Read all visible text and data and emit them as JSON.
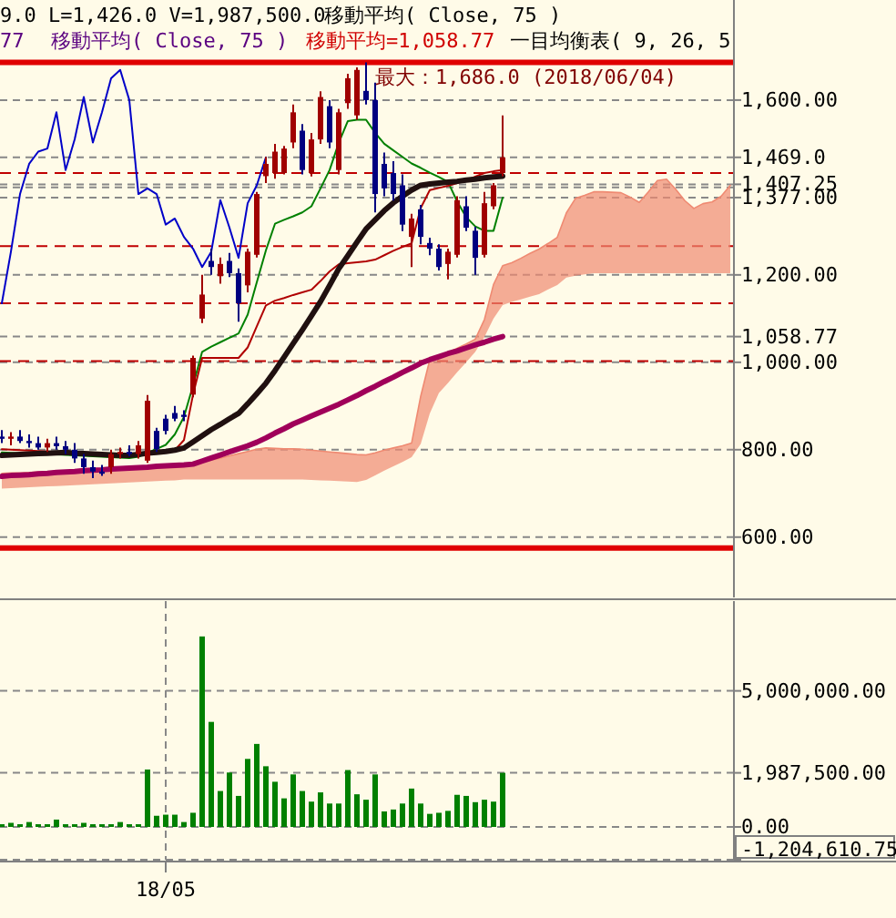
{
  "chart_data": [
    {
      "type": "candlestick",
      "categories": [
        null,
        null,
        null,
        null,
        null,
        null,
        null,
        null,
        null,
        null,
        null,
        null,
        null,
        null,
        null,
        null,
        null,
        null,
        null,
        null,
        null,
        null,
        null,
        null,
        null,
        null,
        null,
        null,
        null,
        null,
        null,
        null,
        null,
        null,
        null,
        null,
        null,
        null,
        null,
        null,
        null,
        null,
        null,
        null,
        null,
        null,
        null,
        null,
        null,
        null,
        null,
        null,
        null,
        null,
        null,
        null,
        null,
        null,
        null,
        null,
        null,
        null,
        null,
        null,
        null,
        null,
        null,
        null,
        null,
        null,
        null,
        null,
        null,
        null,
        null,
        null,
        null,
        null,
        null,
        null,
        null
      ],
      "ohlc": [
        [
          830,
          845,
          815,
          825
        ],
        [
          825,
          840,
          810,
          830
        ],
        [
          830,
          845,
          815,
          820
        ],
        [
          820,
          835,
          805,
          815
        ],
        [
          815,
          830,
          800,
          805
        ],
        [
          805,
          825,
          795,
          815
        ],
        [
          815,
          830,
          800,
          808
        ],
        [
          808,
          820,
          790,
          800
        ],
        [
          800,
          815,
          770,
          780
        ],
        [
          780,
          790,
          745,
          760
        ],
        [
          760,
          775,
          735,
          750
        ],
        [
          750,
          765,
          740,
          745
        ],
        [
          760,
          800,
          745,
          790
        ],
        [
          790,
          805,
          780,
          795
        ],
        [
          795,
          810,
          785,
          790
        ],
        [
          790,
          820,
          780,
          810
        ],
        [
          775,
          925,
          770,
          912
        ],
        [
          843,
          850,
          795,
          801
        ],
        [
          871,
          880,
          835,
          843
        ],
        [
          884,
          900,
          865,
          871
        ],
        [
          880,
          890,
          865,
          875
        ],
        [
          926,
          1015,
          920,
          1010
        ],
        [
          1100,
          1200,
          1090,
          1155
        ],
        [
          1232,
          1260,
          1200,
          1218
        ],
        [
          1197,
          1240,
          1180,
          1225
        ],
        [
          1232,
          1250,
          1195,
          1204
        ],
        [
          1204,
          1215,
          1093,
          1135
        ],
        [
          1176,
          1260,
          1160,
          1253
        ],
        [
          1246,
          1390,
          1240,
          1385
        ],
        [
          1426,
          1470,
          1410,
          1454
        ],
        [
          1433,
          1500,
          1420,
          1482
        ],
        [
          1433,
          1495,
          1430,
          1489
        ],
        [
          1503,
          1590,
          1490,
          1572
        ],
        [
          1530,
          1545,
          1430,
          1440
        ],
        [
          1433,
          1525,
          1425,
          1510
        ],
        [
          1510,
          1620,
          1500,
          1607
        ],
        [
          1586,
          1600,
          1490,
          1503
        ],
        [
          1440,
          1580,
          1430,
          1572
        ],
        [
          1593,
          1660,
          1580,
          1650
        ],
        [
          1565,
          1675,
          1555,
          1669
        ],
        [
          1621,
          1686,
          1590,
          1600
        ],
        [
          1600,
          1640,
          1343,
          1385
        ],
        [
          1454,
          1480,
          1380,
          1398
        ],
        [
          1433,
          1460,
          1370,
          1385
        ],
        [
          1405,
          1430,
          1300,
          1315
        ],
        [
          1287,
          1340,
          1218,
          1329
        ],
        [
          1350,
          1360,
          1270,
          1287
        ],
        [
          1273,
          1285,
          1245,
          1260
        ],
        [
          1260,
          1270,
          1210,
          1218
        ],
        [
          1225,
          1260,
          1190,
          1253
        ],
        [
          1246,
          1380,
          1240,
          1371
        ],
        [
          1357,
          1380,
          1300,
          1308
        ],
        [
          1301,
          1310,
          1200,
          1239
        ],
        [
          1246,
          1390,
          1240,
          1364
        ],
        [
          1357,
          1410,
          1350,
          1405
        ],
        [
          1433,
          1565,
          1426,
          1469
        ],
        null,
        null,
        null,
        null,
        null,
        null,
        null,
        null,
        null,
        null,
        null,
        null,
        null,
        null,
        null,
        null,
        null,
        null,
        null,
        null,
        null,
        null,
        null,
        null,
        null
      ],
      "series": [
        {
          "type": "line",
          "color": "#ef8a72",
          "values": [
            746,
            747,
            747,
            748,
            749,
            749,
            750,
            751,
            752,
            752,
            753,
            754,
            754,
            755,
            756,
            756,
            757,
            758,
            759,
            759,
            761,
            766,
            771,
            776,
            781,
            786,
            791,
            796,
            801,
            804,
            803,
            802,
            802,
            801,
            799,
            797,
            795,
            793,
            791,
            789,
            788,
            793,
            799,
            804,
            809,
            815,
            922,
            1006,
            1012,
            1022,
            1032,
            1042,
            1053,
            1098,
            1178,
            1221,
            1228,
            1238,
            1249,
            1259,
            1272,
            1286,
            1342,
            1375,
            1382,
            1390,
            1390,
            1389,
            1388,
            1378,
            1366,
            1390,
            1416,
            1419,
            1396,
            1370,
            1352,
            1363,
            1367,
            1380,
            1405
          ],
          "upper": [
            746,
            747,
            747,
            748,
            749,
            749,
            750,
            751,
            752,
            752,
            753,
            754,
            754,
            755,
            756,
            756,
            757,
            758,
            759,
            759,
            761,
            766,
            771,
            776,
            781,
            786,
            791,
            796,
            801,
            804,
            803,
            802,
            802,
            801,
            799,
            797,
            795,
            793,
            791,
            789,
            788,
            793,
            799,
            804,
            809,
            815,
            922,
            1006,
            1012,
            1022,
            1032,
            1042,
            1053,
            1098,
            1178,
            1221,
            1228,
            1238,
            1249,
            1259,
            1272,
            1286,
            1342,
            1375,
            1382,
            1390,
            1390,
            1389,
            1388,
            1378,
            1366,
            1390,
            1416,
            1419,
            1396,
            1370,
            1352,
            1363,
            1367,
            1380,
            1405
          ],
          "lower": [
            711,
            712,
            713,
            714,
            715,
            716,
            717,
            718,
            719,
            720,
            721,
            722,
            723,
            724,
            725,
            726,
            727,
            728,
            729,
            730,
            732,
            732,
            732,
            732,
            732,
            732,
            732,
            732,
            732,
            732,
            732,
            732,
            732,
            732,
            731,
            730,
            729,
            728,
            727,
            726,
            731,
            741,
            752,
            762,
            772,
            783,
            813,
            883,
            930,
            953,
            977,
            1000,
            1024,
            1058,
            1100,
            1131,
            1138,
            1144,
            1150,
            1156,
            1167,
            1177,
            1194,
            1198,
            1201,
            1204,
            1204,
            1204,
            1204,
            1204,
            1204,
            1204,
            1204,
            1204,
            1204,
            1204,
            1204,
            1204,
            1204,
            1204,
            1204
          ]
        },
        {
          "type": "line",
          "color": "#0000c8",
          "values": [
            1135,
            1253,
            1385,
            1454,
            1482,
            1489,
            1572,
            1440,
            1510,
            1607,
            1503,
            1572,
            1650,
            1669,
            1600,
            1385,
            1398,
            1385,
            1315,
            1329,
            1287,
            1260,
            1218,
            1253,
            1371,
            1308,
            1239,
            1364,
            1405,
            1469,
            null,
            null,
            null,
            null,
            null,
            null,
            null,
            null,
            null,
            null,
            null,
            null,
            null,
            null,
            null,
            null,
            null,
            null,
            null,
            null,
            null,
            null,
            null,
            null,
            null,
            null,
            null,
            null,
            null,
            null,
            null,
            null,
            null,
            null,
            null,
            null,
            null,
            null,
            null,
            null,
            null,
            null,
            null,
            null,
            null,
            null,
            null,
            null,
            null,
            null,
            null
          ]
        },
        {
          "type": "line",
          "color": "#008000",
          "values": [
            794,
            793,
            792,
            791,
            790,
            789,
            789,
            788,
            787,
            786,
            785,
            784,
            783,
            782,
            781,
            784,
            793,
            802,
            811,
            835,
            875,
            947,
            1024,
            1036,
            1046,
            1056,
            1066,
            1109,
            1183,
            1256,
            1317,
            1326,
            1334,
            1343,
            1357,
            1398,
            1440,
            1502,
            1552,
            1555,
            1555,
            1525,
            1500,
            1485,
            1470,
            1455,
            1445,
            1434,
            1424,
            1413,
            1368,
            1332,
            1311,
            1301,
            1301,
            1377,
            null,
            null,
            null,
            null,
            null,
            null,
            null,
            null,
            null,
            null,
            null,
            null,
            null,
            null,
            null,
            null,
            null,
            null,
            null,
            null,
            null,
            null,
            null,
            null,
            null
          ]
        },
        {
          "type": "line",
          "color": "#b00000",
          "values": [
            801,
            800,
            799,
            798,
            797,
            796,
            795,
            794,
            793,
            792,
            791,
            790,
            789,
            788,
            788,
            790,
            792,
            794,
            797,
            799,
            822,
            926,
            1010,
            1010,
            1010,
            1010,
            1010,
            1034,
            1082,
            1130,
            1141,
            1147,
            1154,
            1160,
            1166,
            1186,
            1208,
            1224,
            1227,
            1229,
            1231,
            1235,
            1245,
            1255,
            1264,
            1272,
            1353,
            1394,
            1399,
            1404,
            1410,
            1416,
            1425,
            1433,
            1437,
            1440,
            null,
            null,
            null,
            null,
            null,
            null,
            null,
            null,
            null,
            null,
            null,
            null,
            null,
            null,
            null,
            null,
            null,
            null,
            null,
            null,
            null,
            null,
            null,
            null,
            null
          ]
        },
        {
          "type": "line",
          "color": "#a0005a",
          "values": [
            739,
            741,
            742,
            743,
            745,
            746,
            748,
            749,
            750,
            752,
            753,
            754,
            756,
            757,
            758,
            759,
            760,
            762,
            763,
            764,
            765,
            767,
            774,
            781,
            788,
            795,
            802,
            809,
            817,
            827,
            838,
            848,
            859,
            868,
            877,
            886,
            895,
            904,
            914,
            924,
            935,
            945,
            956,
            966,
            977,
            987,
            998,
            1006,
            1013,
            1020,
            1026,
            1033,
            1040,
            1046,
            1053,
            1059,
            null,
            null,
            null,
            null,
            null,
            null,
            null,
            null,
            null,
            null,
            null,
            null,
            null,
            null,
            null,
            null,
            null,
            null,
            null,
            null,
            null,
            null,
            null,
            null,
            null
          ]
        },
        {
          "type": "line",
          "color": "#201010",
          "values": [
            787,
            788,
            789,
            790,
            791,
            792,
            793,
            794,
            792,
            791,
            790,
            789,
            788,
            787,
            787,
            789,
            792,
            794,
            796,
            799,
            804,
            818,
            832,
            846,
            858,
            871,
            883,
            905,
            928,
            952,
            981,
            1012,
            1043,
            1074,
            1106,
            1139,
            1176,
            1214,
            1244,
            1275,
            1305,
            1326,
            1347,
            1365,
            1380,
            1394,
            1405,
            1408,
            1410,
            1412,
            1414,
            1417,
            1419,
            1422,
            1424,
            1426,
            null,
            null,
            null,
            null,
            null,
            null,
            null,
            null,
            null,
            null,
            null,
            null,
            null,
            null,
            null,
            null,
            null,
            null,
            null,
            null,
            null,
            null,
            null,
            null,
            null
          ]
        }
      ],
      "ylim": [
        462,
        1829
      ],
      "yticks": [
        {
          "value": 600,
          "label": "600.00"
        },
        {
          "value": 800,
          "label": "800.00"
        },
        {
          "value": 1000,
          "label": "1,000.00"
        },
        {
          "value": 1058.77,
          "label": "1,058.77"
        },
        {
          "value": 1200,
          "label": "1,200.00"
        },
        {
          "value": 1377,
          "label": "1,377.00"
        },
        {
          "value": 1400,
          "label": null
        },
        {
          "value": 1407.25,
          "label": "1,407.25"
        },
        {
          "value": 1469,
          "label": "1,469.0"
        },
        {
          "value": 1600,
          "label": "1,600.00"
        }
      ],
      "tick_labels": "y",
      "grid": true,
      "ref_lines": [
        {
          "axis": "y",
          "value": 1686,
          "color": "#e00000",
          "line_style": "solid"
        },
        {
          "axis": "y",
          "value": 575,
          "color": "#e00000",
          "line_style": "solid"
        },
        {
          "axis": "y",
          "value": 1433,
          "color": "#c00000",
          "line_style": "dashed"
        },
        {
          "axis": "y",
          "value": 1266,
          "color": "#c00000",
          "line_style": "dashed"
        },
        {
          "axis": "y",
          "value": 1135,
          "color": "#c00000",
          "line_style": "dashed"
        },
        {
          "axis": "y",
          "value": 1003,
          "color": "#c00000",
          "line_style": "dashed"
        }
      ],
      "annotations": [
        "9.0 L=1,426.0 V=1,987,500.0",
        "移動平均( Close, 75 )",
        "77",
        "移動平均( Close, 75 )",
        "移動平均=1,058.77",
        "一目均衡表( 9, 26, 5",
        "最大：1,686.0 (2018/06/04)"
      ]
    },
    {
      "type": "bar",
      "categories": [
        null,
        null,
        null,
        null,
        null,
        null,
        null,
        null,
        null,
        null,
        null,
        null,
        null,
        null,
        null,
        null,
        null,
        null,
        "18/05",
        null,
        null,
        null,
        null,
        null,
        null,
        null,
        null,
        null,
        null,
        null,
        null,
        null,
        null,
        null,
        null,
        null,
        null,
        null,
        null,
        null,
        null,
        null,
        null,
        null,
        null,
        null,
        null,
        null,
        null,
        null,
        null,
        null,
        null,
        null,
        null,
        null,
        null,
        null,
        null,
        null,
        null,
        null,
        null,
        null,
        null,
        null,
        null,
        null,
        null,
        null,
        null,
        null,
        null,
        null,
        null,
        null,
        null,
        null,
        null,
        null,
        null
      ],
      "values": [
        100000,
        150000,
        100000,
        180000,
        100000,
        100000,
        270000,
        100000,
        100000,
        150000,
        100000,
        100000,
        100000,
        180000,
        100000,
        100000,
        2110000,
        410000,
        450000,
        450000,
        180000,
        520000,
        7000000,
        3860000,
        1320000,
        2000000,
        1140000,
        2500000,
        3050000,
        2230000,
        1660000,
        1050000,
        1930000,
        1320000,
        930000,
        1270000,
        860000,
        860000,
        2090000,
        1200000,
        1000000,
        1930000,
        570000,
        640000,
        860000,
        1410000,
        860000,
        480000,
        520000,
        590000,
        1180000,
        1140000,
        910000,
        1000000,
        930000,
        1987500,
        null,
        null,
        null,
        null,
        null,
        null,
        null,
        null,
        null,
        null,
        null,
        null,
        null,
        null,
        null,
        null,
        null,
        null,
        null,
        null,
        null,
        null,
        null,
        null,
        null
      ],
      "color": "#008000",
      "ylim": [
        -1204610.75,
        8300000
      ],
      "yticks": [
        {
          "value": -1204610.75,
          "label": "-1,204,610.75"
        },
        {
          "value": 0,
          "label": "0.00"
        },
        {
          "value": 1987500,
          "label": "1,987,500.00"
        },
        {
          "value": 5000000,
          "label": "5,000,000.00"
        }
      ],
      "grid": true
    }
  ]
}
